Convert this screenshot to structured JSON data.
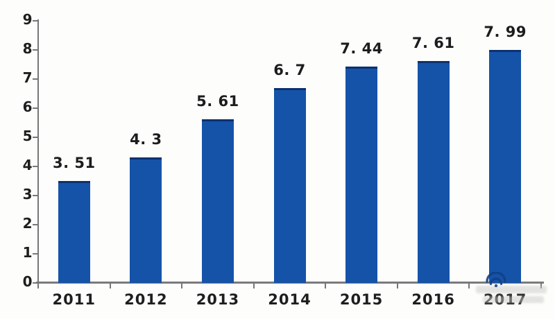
{
  "chart_data": {
    "type": "bar",
    "title": "",
    "xlabel": "",
    "ylabel": "",
    "categories": [
      "2011",
      "2012",
      "2013",
      "2014",
      "2015",
      "2016",
      "2017"
    ],
    "values": [
      3.51,
      4.3,
      5.61,
      6.7,
      7.44,
      7.61,
      7.99
    ],
    "value_labels": [
      "3. 51",
      "4. 3",
      "5. 61",
      "6. 7",
      "7. 44",
      "7. 61",
      "7. 99"
    ],
    "ylim": [
      0,
      9
    ],
    "yticks": [
      0,
      1,
      2,
      3,
      4,
      5,
      6,
      7,
      8,
      9
    ],
    "grid": false,
    "legend_position": "none",
    "bar_color": "#1553a8",
    "bar_top_edge_color": "#0b3170",
    "axis_color": "#767676",
    "label_color": "#1c1c1c"
  },
  "watermark": {
    "icon": "wifi-logo-icon"
  }
}
